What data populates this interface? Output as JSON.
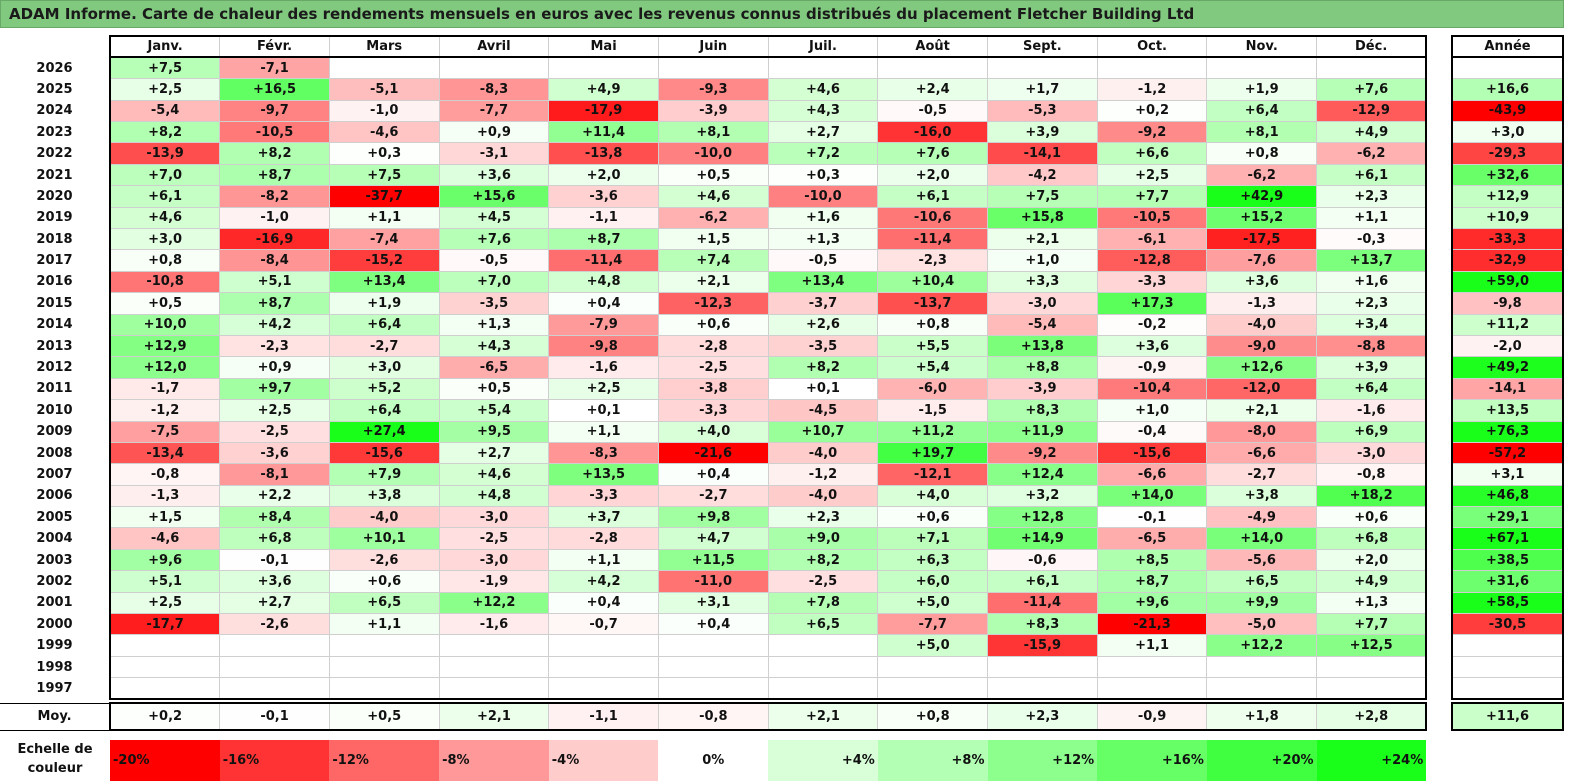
{
  "title": "ADAM Informe. Carte de chaleur des rendements mensuels en euros avec les revenus connus distribués du placement Fletcher Building Ltd",
  "chart_data": {
    "type": "heatmap",
    "title": "ADAM Informe. Carte de chaleur des rendements mensuels en euros avec les revenus connus distribués du placement Fletcher Building Ltd",
    "columns": [
      "Janv.",
      "Févr.",
      "Mars",
      "Avril",
      "Mai",
      "Juin",
      "Juil.",
      "Août",
      "Sept.",
      "Oct.",
      "Nov.",
      "Déc."
    ],
    "annual_header": "Année",
    "rows": [
      {
        "year": "2026",
        "months": [
          "+7,5",
          "-7,1",
          "",
          "",
          "",
          "",
          "",
          "",
          "",
          "",
          "",
          ""
        ],
        "annual": ""
      },
      {
        "year": "2025",
        "months": [
          "+2,5",
          "+16,5",
          "-5,1",
          "-8,3",
          "+4,9",
          "-9,3",
          "+4,6",
          "+2,4",
          "+1,7",
          "-1,2",
          "+1,9",
          "+7,6"
        ],
        "annual": "+16,6"
      },
      {
        "year": "2024",
        "months": [
          "-5,4",
          "-9,7",
          "-1,0",
          "-7,7",
          "-17,9",
          "-3,9",
          "+4,3",
          "-0,5",
          "-5,3",
          "+0,2",
          "+6,4",
          "-12,9"
        ],
        "annual": "-43,9"
      },
      {
        "year": "2023",
        "months": [
          "+8,2",
          "-10,5",
          "-4,6",
          "+0,9",
          "+11,4",
          "+8,1",
          "+2,7",
          "-16,0",
          "+3,9",
          "-9,2",
          "+8,1",
          "+4,9"
        ],
        "annual": "+3,0"
      },
      {
        "year": "2022",
        "months": [
          "-13,9",
          "+8,2",
          "+0,3",
          "-3,1",
          "-13,8",
          "-10,0",
          "+7,2",
          "+7,6",
          "-14,1",
          "+6,6",
          "+0,8",
          "-6,2"
        ],
        "annual": "-29,3"
      },
      {
        "year": "2021",
        "months": [
          "+7,0",
          "+8,7",
          "+7,5",
          "+3,6",
          "+2,0",
          "+0,5",
          "+0,3",
          "+2,0",
          "-4,2",
          "+2,5",
          "-6,2",
          "+6,1"
        ],
        "annual": "+32,6"
      },
      {
        "year": "2020",
        "months": [
          "+6,1",
          "-8,2",
          "-37,7",
          "+15,6",
          "-3,6",
          "+4,6",
          "-10,0",
          "+6,1",
          "+7,5",
          "+7,7",
          "+42,9",
          "+2,3"
        ],
        "annual": "+12,9"
      },
      {
        "year": "2019",
        "months": [
          "+4,6",
          "-1,0",
          "+1,1",
          "+4,5",
          "-1,1",
          "-6,2",
          "+1,6",
          "-10,6",
          "+15,8",
          "-10,5",
          "+15,2",
          "+1,1"
        ],
        "annual": "+10,9"
      },
      {
        "year": "2018",
        "months": [
          "+3,0",
          "-16,9",
          "-7,4",
          "+7,6",
          "+8,7",
          "+1,5",
          "+1,3",
          "-11,4",
          "+2,1",
          "-6,1",
          "-17,5",
          "-0,3"
        ],
        "annual": "-33,3"
      },
      {
        "year": "2017",
        "months": [
          "+0,8",
          "-8,4",
          "-15,2",
          "-0,5",
          "-11,4",
          "+7,4",
          "-0,5",
          "-2,3",
          "+1,0",
          "-12,8",
          "-7,6",
          "+13,7"
        ],
        "annual": "-32,9"
      },
      {
        "year": "2016",
        "months": [
          "-10,8",
          "+5,1",
          "+13,4",
          "+7,0",
          "+4,8",
          "+2,1",
          "+13,4",
          "+10,4",
          "+3,3",
          "-3,3",
          "+3,6",
          "+1,6"
        ],
        "annual": "+59,0"
      },
      {
        "year": "2015",
        "months": [
          "+0,5",
          "+8,7",
          "+1,9",
          "-3,5",
          "+0,4",
          "-12,3",
          "-3,7",
          "-13,7",
          "-3,0",
          "+17,3",
          "-1,3",
          "+2,3"
        ],
        "annual": "-9,8"
      },
      {
        "year": "2014",
        "months": [
          "+10,0",
          "+4,2",
          "+6,4",
          "+1,3",
          "-7,9",
          "+0,6",
          "+2,6",
          "+0,8",
          "-5,4",
          "-0,2",
          "-4,0",
          "+3,4"
        ],
        "annual": "+11,2"
      },
      {
        "year": "2013",
        "months": [
          "+12,9",
          "-2,3",
          "-2,7",
          "+4,3",
          "-9,8",
          "-2,8",
          "-3,5",
          "+5,5",
          "+13,8",
          "+3,6",
          "-9,0",
          "-8,8"
        ],
        "annual": "-2,0"
      },
      {
        "year": "2012",
        "months": [
          "+12,0",
          "+0,9",
          "+3,0",
          "-6,5",
          "-1,6",
          "-2,5",
          "+8,2",
          "+5,4",
          "+8,8",
          "-0,9",
          "+12,6",
          "+3,9"
        ],
        "annual": "+49,2"
      },
      {
        "year": "2011",
        "months": [
          "-1,7",
          "+9,7",
          "+5,2",
          "+0,5",
          "+2,5",
          "-3,8",
          "+0,1",
          "-6,0",
          "-3,9",
          "-10,4",
          "-12,0",
          "+6,4"
        ],
        "annual": "-14,1"
      },
      {
        "year": "2010",
        "months": [
          "-1,2",
          "+2,5",
          "+6,4",
          "+5,4",
          "+0,1",
          "-3,3",
          "-4,5",
          "-1,5",
          "+8,3",
          "+1,0",
          "+2,1",
          "-1,6"
        ],
        "annual": "+13,5"
      },
      {
        "year": "2009",
        "months": [
          "-7,5",
          "-2,5",
          "+27,4",
          "+9,5",
          "+1,1",
          "+4,0",
          "+10,7",
          "+11,2",
          "+11,9",
          "-0,4",
          "-8,0",
          "+6,9"
        ],
        "annual": "+76,3"
      },
      {
        "year": "2008",
        "months": [
          "-13,4",
          "-3,6",
          "-15,6",
          "+2,7",
          "-8,3",
          "-21,6",
          "-4,0",
          "+19,7",
          "-9,2",
          "-15,6",
          "-6,6",
          "-3,0"
        ],
        "annual": "-57,2"
      },
      {
        "year": "2007",
        "months": [
          "-0,8",
          "-8,1",
          "+7,9",
          "+4,6",
          "+13,5",
          "+0,4",
          "-1,2",
          "-12,1",
          "+12,4",
          "-6,6",
          "-2,7",
          "-0,8"
        ],
        "annual": "+3,1"
      },
      {
        "year": "2006",
        "months": [
          "-1,3",
          "+2,2",
          "+3,8",
          "+4,8",
          "-3,3",
          "-2,7",
          "-4,0",
          "+4,0",
          "+3,2",
          "+14,0",
          "+3,8",
          "+18,2"
        ],
        "annual": "+46,8"
      },
      {
        "year": "2005",
        "months": [
          "+1,5",
          "+8,4",
          "-4,0",
          "-3,0",
          "+3,7",
          "+9,8",
          "+2,3",
          "+0,6",
          "+12,8",
          "-0,1",
          "-4,9",
          "+0,6"
        ],
        "annual": "+29,1"
      },
      {
        "year": "2004",
        "months": [
          "-4,6",
          "+6,8",
          "+10,1",
          "-2,5",
          "-2,8",
          "+4,7",
          "+9,0",
          "+7,1",
          "+14,9",
          "-6,5",
          "+14,0",
          "+6,8"
        ],
        "annual": "+67,1"
      },
      {
        "year": "2003",
        "months": [
          "+9,6",
          "-0,1",
          "-2,6",
          "-3,0",
          "+1,1",
          "+11,5",
          "+8,2",
          "+6,3",
          "-0,6",
          "+8,5",
          "-5,6",
          "+2,0"
        ],
        "annual": "+38,5"
      },
      {
        "year": "2002",
        "months": [
          "+5,1",
          "+3,6",
          "+0,6",
          "-1,9",
          "+4,2",
          "-11,0",
          "-2,5",
          "+6,0",
          "+6,1",
          "+8,7",
          "+6,5",
          "+4,9"
        ],
        "annual": "+31,6"
      },
      {
        "year": "2001",
        "months": [
          "+2,5",
          "+2,7",
          "+6,5",
          "+12,2",
          "+0,4",
          "+3,1",
          "+7,8",
          "+5,0",
          "-11,4",
          "+9,6",
          "+9,9",
          "+1,3"
        ],
        "annual": "+58,5"
      },
      {
        "year": "2000",
        "months": [
          "-17,7",
          "-2,6",
          "+1,1",
          "-1,6",
          "-0,7",
          "+0,4",
          "+6,5",
          "-7,7",
          "+8,3",
          "-21,3",
          "-5,0",
          "+7,7"
        ],
        "annual": "-30,5"
      },
      {
        "year": "1999",
        "months": [
          "",
          "",
          "",
          "",
          "",
          "",
          "",
          "+5,0",
          "-15,9",
          "+1,1",
          "+12,2",
          "+12,5"
        ],
        "annual": ""
      },
      {
        "year": "1998",
        "months": [
          "",
          "",
          "",
          "",
          "",
          "",
          "",
          "",
          "",
          "",
          "",
          ""
        ],
        "annual": ""
      },
      {
        "year": "1997",
        "months": [
          "",
          "",
          "",
          "",
          "",
          "",
          "",
          "",
          "",
          "",
          "",
          ""
        ],
        "annual": ""
      }
    ],
    "average": {
      "label": "Moy.",
      "months": [
        "+0,2",
        "-0,1",
        "+0,5",
        "+2,1",
        "-1,1",
        "-0,8",
        "+2,1",
        "+0,8",
        "+2,3",
        "-0,9",
        "+1,8",
        "+2,8"
      ],
      "annual": "+11,6"
    },
    "colors": {
      "max_negative": "#ff0000",
      "zero": "#ffffff",
      "max_positive": "#00ff00"
    }
  },
  "scale": {
    "label": "Echelle de couleur",
    "items": [
      {
        "text": "-20%",
        "value": -20
      },
      {
        "text": "-16%",
        "value": -16
      },
      {
        "text": "-12%",
        "value": -12
      },
      {
        "text": "-8%",
        "value": -8
      },
      {
        "text": "-4%",
        "value": -4
      },
      {
        "text": "0%",
        "value": 0
      },
      {
        "text": "+4%",
        "value": 4
      },
      {
        "text": "+8%",
        "value": 8
      },
      {
        "text": "+12%",
        "value": 12
      },
      {
        "text": "+16%",
        "value": 16
      },
      {
        "text": "+20%",
        "value": 20
      },
      {
        "text": "+24%",
        "value": 24
      }
    ]
  }
}
